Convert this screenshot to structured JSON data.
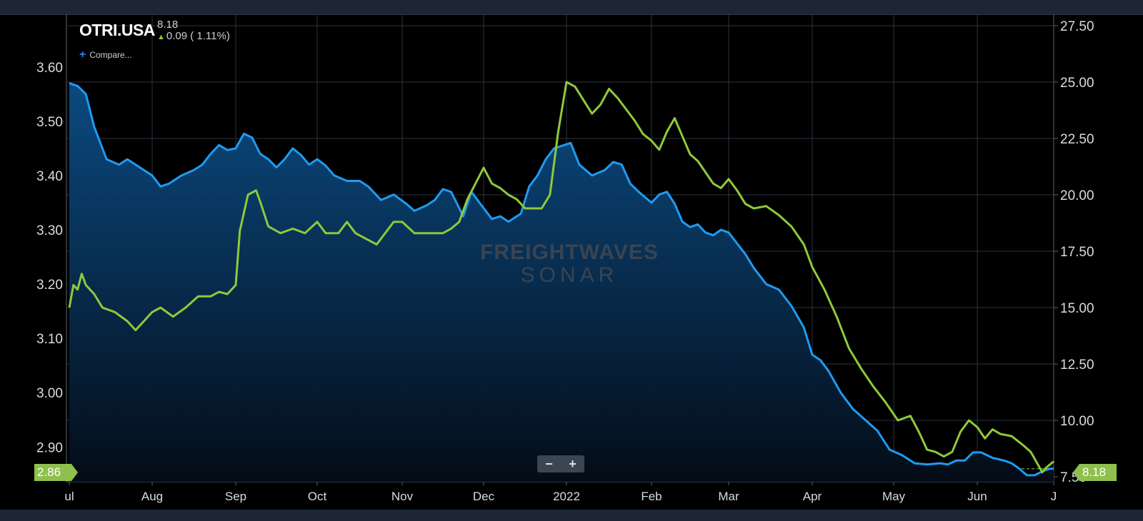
{
  "legend": {
    "ticker": "OTRI.USA",
    "last_value": "8.18",
    "change": "0.09 ( 1.11%)",
    "compare_label": "Compare..."
  },
  "watermark": {
    "line1": "FREIGHTWAVES",
    "line2": "SONAR"
  },
  "zoom": {
    "minus": "−",
    "plus": "+"
  },
  "badges": {
    "left": "2.86",
    "right": "8.18"
  },
  "colors": {
    "blue": "#1e9bf0",
    "green": "#8fc93a",
    "grid": "#2a3440",
    "axis_text": "#d7dbe0"
  },
  "chart_data": {
    "type": "line",
    "x_ticks": [
      "ul",
      "Aug",
      "Sep",
      "Oct",
      "Nov",
      "Dec",
      "2022",
      "Feb",
      "Mar",
      "Apr",
      "May",
      "Jun",
      "J"
    ],
    "x_tick_positions": [
      0,
      1,
      2,
      3,
      4,
      5,
      6,
      7,
      8,
      9,
      10,
      11,
      12
    ],
    "left_axis": {
      "ticks": [
        "3.60",
        "3.50",
        "3.40",
        "3.30",
        "3.20",
        "3.10",
        "3.00",
        "2.90"
      ],
      "range": [
        2.836,
        3.697
      ]
    },
    "right_axis": {
      "ticks": [
        "27.50",
        "25.00",
        "22.50",
        "20.00",
        "17.50",
        "15.00",
        "12.50",
        "10.00",
        "7.50"
      ],
      "range": [
        7.5,
        27.5
      ]
    },
    "current_lines": {
      "left": 2.86,
      "right": 8.18
    },
    "series": [
      {
        "axis": "left",
        "area": true,
        "points": [
          [
            0,
            3.57
          ],
          [
            0.1,
            3.565
          ],
          [
            0.2,
            3.55
          ],
          [
            0.3,
            3.49
          ],
          [
            0.45,
            3.43
          ],
          [
            0.6,
            3.42
          ],
          [
            0.7,
            3.43
          ],
          [
            0.85,
            3.415
          ],
          [
            1.0,
            3.4
          ],
          [
            1.1,
            3.38
          ],
          [
            1.2,
            3.385
          ],
          [
            1.35,
            3.4
          ],
          [
            1.5,
            3.41
          ],
          [
            1.6,
            3.42
          ],
          [
            1.7,
            3.44
          ],
          [
            1.8,
            3.456
          ],
          [
            1.9,
            3.447
          ],
          [
            2.0,
            3.45
          ],
          [
            2.1,
            3.477
          ],
          [
            2.2,
            3.47
          ],
          [
            2.3,
            3.44
          ],
          [
            2.4,
            3.43
          ],
          [
            2.5,
            3.415
          ],
          [
            2.6,
            3.43
          ],
          [
            2.7,
            3.45
          ],
          [
            2.8,
            3.438
          ],
          [
            2.9,
            3.42
          ],
          [
            3.0,
            3.43
          ],
          [
            3.1,
            3.418
          ],
          [
            3.2,
            3.4
          ],
          [
            3.35,
            3.39
          ],
          [
            3.5,
            3.39
          ],
          [
            3.6,
            3.38
          ],
          [
            3.75,
            3.355
          ],
          [
            3.9,
            3.365
          ],
          [
            4.05,
            3.348
          ],
          [
            4.15,
            3.335
          ],
          [
            4.3,
            3.345
          ],
          [
            4.4,
            3.355
          ],
          [
            4.5,
            3.375
          ],
          [
            4.6,
            3.37
          ],
          [
            4.75,
            3.325
          ],
          [
            4.85,
            3.37
          ],
          [
            5.0,
            3.34
          ],
          [
            5.1,
            3.32
          ],
          [
            5.2,
            3.325
          ],
          [
            5.3,
            3.315
          ],
          [
            5.45,
            3.33
          ],
          [
            5.55,
            3.38
          ],
          [
            5.65,
            3.4
          ],
          [
            5.75,
            3.43
          ],
          [
            5.85,
            3.45
          ],
          [
            5.95,
            3.455
          ],
          [
            6.05,
            3.46
          ],
          [
            6.15,
            3.42
          ],
          [
            6.3,
            3.4
          ],
          [
            6.45,
            3.41
          ],
          [
            6.55,
            3.425
          ],
          [
            6.65,
            3.42
          ],
          [
            6.75,
            3.385
          ],
          [
            6.85,
            3.37
          ],
          [
            7.0,
            3.35
          ],
          [
            7.1,
            3.365
          ],
          [
            7.2,
            3.37
          ],
          [
            7.3,
            3.348
          ],
          [
            7.4,
            3.315
          ],
          [
            7.5,
            3.305
          ],
          [
            7.6,
            3.31
          ],
          [
            7.7,
            3.295
          ],
          [
            7.8,
            3.29
          ],
          [
            7.9,
            3.3
          ],
          [
            8.0,
            3.295
          ],
          [
            8.1,
            3.275
          ],
          [
            8.2,
            3.255
          ],
          [
            8.3,
            3.23
          ],
          [
            8.45,
            3.2
          ],
          [
            8.6,
            3.19
          ],
          [
            8.75,
            3.16
          ],
          [
            8.9,
            3.12
          ],
          [
            9.0,
            3.07
          ],
          [
            9.1,
            3.06
          ],
          [
            9.2,
            3.04
          ],
          [
            9.35,
            3.0
          ],
          [
            9.5,
            2.97
          ],
          [
            9.65,
            2.95
          ],
          [
            9.8,
            2.93
          ],
          [
            9.95,
            2.895
          ],
          [
            10.1,
            2.885
          ],
          [
            10.25,
            2.87
          ],
          [
            10.4,
            2.868
          ],
          [
            10.55,
            2.87
          ],
          [
            10.65,
            2.868
          ],
          [
            10.75,
            2.875
          ],
          [
            10.85,
            2.875
          ],
          [
            10.95,
            2.89
          ],
          [
            11.05,
            2.89
          ],
          [
            11.2,
            2.88
          ],
          [
            11.35,
            2.875
          ],
          [
            11.45,
            2.87
          ],
          [
            11.55,
            2.86
          ],
          [
            11.65,
            2.848
          ],
          [
            11.75,
            2.848
          ],
          [
            11.85,
            2.855
          ],
          [
            11.95,
            2.86
          ],
          [
            12.0,
            2.86
          ]
        ]
      },
      {
        "axis": "right",
        "area": false,
        "points": [
          [
            0,
            15.0
          ],
          [
            0.05,
            16.0
          ],
          [
            0.1,
            15.8
          ],
          [
            0.15,
            16.5
          ],
          [
            0.2,
            16.0
          ],
          [
            0.3,
            15.6
          ],
          [
            0.4,
            15.0
          ],
          [
            0.55,
            14.8
          ],
          [
            0.7,
            14.4
          ],
          [
            0.8,
            14.0
          ],
          [
            0.9,
            14.4
          ],
          [
            1.0,
            14.8
          ],
          [
            1.1,
            15.0
          ],
          [
            1.25,
            14.6
          ],
          [
            1.4,
            15.0
          ],
          [
            1.55,
            15.5
          ],
          [
            1.7,
            15.5
          ],
          [
            1.8,
            15.7
          ],
          [
            1.9,
            15.6
          ],
          [
            2.0,
            16.0
          ],
          [
            2.05,
            18.4
          ],
          [
            2.15,
            20.0
          ],
          [
            2.25,
            20.2
          ],
          [
            2.3,
            19.7
          ],
          [
            2.4,
            18.6
          ],
          [
            2.55,
            18.3
          ],
          [
            2.7,
            18.5
          ],
          [
            2.85,
            18.3
          ],
          [
            3.0,
            18.8
          ],
          [
            3.1,
            18.3
          ],
          [
            3.25,
            18.3
          ],
          [
            3.35,
            18.8
          ],
          [
            3.45,
            18.3
          ],
          [
            3.6,
            18.0
          ],
          [
            3.7,
            17.8
          ],
          [
            3.8,
            18.3
          ],
          [
            3.9,
            18.8
          ],
          [
            4.0,
            18.8
          ],
          [
            4.15,
            18.3
          ],
          [
            4.3,
            18.3
          ],
          [
            4.5,
            18.3
          ],
          [
            4.6,
            18.5
          ],
          [
            4.7,
            18.8
          ],
          [
            4.8,
            19.8
          ],
          [
            4.9,
            20.5
          ],
          [
            5.0,
            21.2
          ],
          [
            5.1,
            20.5
          ],
          [
            5.2,
            20.3
          ],
          [
            5.3,
            20.0
          ],
          [
            5.4,
            19.8
          ],
          [
            5.5,
            19.4
          ],
          [
            5.6,
            19.4
          ],
          [
            5.7,
            19.4
          ],
          [
            5.8,
            20.0
          ],
          [
            5.9,
            22.8
          ],
          [
            6.0,
            25.0
          ],
          [
            6.1,
            24.8
          ],
          [
            6.2,
            24.2
          ],
          [
            6.3,
            23.6
          ],
          [
            6.4,
            24.0
          ],
          [
            6.5,
            24.7
          ],
          [
            6.6,
            24.3
          ],
          [
            6.7,
            23.8
          ],
          [
            6.8,
            23.3
          ],
          [
            6.9,
            22.7
          ],
          [
            7.0,
            22.4
          ],
          [
            7.1,
            22.0
          ],
          [
            7.2,
            22.8
          ],
          [
            7.3,
            23.4
          ],
          [
            7.4,
            22.6
          ],
          [
            7.5,
            21.8
          ],
          [
            7.6,
            21.5
          ],
          [
            7.7,
            21.0
          ],
          [
            7.8,
            20.5
          ],
          [
            7.9,
            20.3
          ],
          [
            8.0,
            20.7
          ],
          [
            8.1,
            20.2
          ],
          [
            8.2,
            19.6
          ],
          [
            8.3,
            19.4
          ],
          [
            8.45,
            19.5
          ],
          [
            8.6,
            19.1
          ],
          [
            8.75,
            18.6
          ],
          [
            8.9,
            17.8
          ],
          [
            9.0,
            16.8
          ],
          [
            9.15,
            15.8
          ],
          [
            9.3,
            14.6
          ],
          [
            9.45,
            13.2
          ],
          [
            9.6,
            12.3
          ],
          [
            9.75,
            11.5
          ],
          [
            9.9,
            10.8
          ],
          [
            10.05,
            10.0
          ],
          [
            10.2,
            10.2
          ],
          [
            10.3,
            9.5
          ],
          [
            10.4,
            8.7
          ],
          [
            10.5,
            8.6
          ],
          [
            10.6,
            8.4
          ],
          [
            10.7,
            8.6
          ],
          [
            10.8,
            9.5
          ],
          [
            10.9,
            10.0
          ],
          [
            11.0,
            9.7
          ],
          [
            11.1,
            9.2
          ],
          [
            11.2,
            9.6
          ],
          [
            11.3,
            9.4
          ],
          [
            11.45,
            9.3
          ],
          [
            11.6,
            8.9
          ],
          [
            11.7,
            8.6
          ],
          [
            11.8,
            8.0
          ],
          [
            11.85,
            7.7
          ],
          [
            11.9,
            7.9
          ],
          [
            12.0,
            8.18
          ]
        ]
      }
    ]
  }
}
